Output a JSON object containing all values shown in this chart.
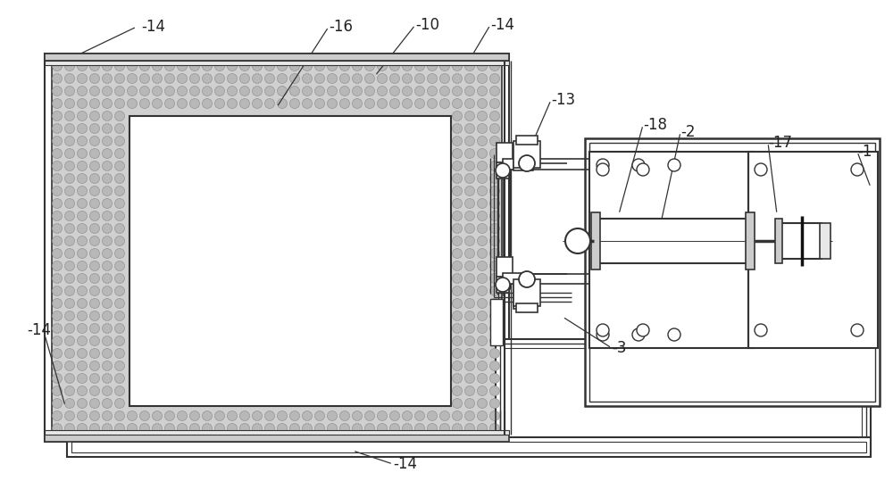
{
  "bg_color": "#ffffff",
  "lc": "#333333",
  "lc_thin": "#555555",
  "ins_fill": "#d0d0d0",
  "ins_dot_fill": "#b8b8b8",
  "ins_dot_edge": "#888888",
  "white": "#ffffff",
  "gray_light": "#e8e8e8",
  "gray_mid": "#cccccc",
  "gray_dark": "#aaaaaa"
}
